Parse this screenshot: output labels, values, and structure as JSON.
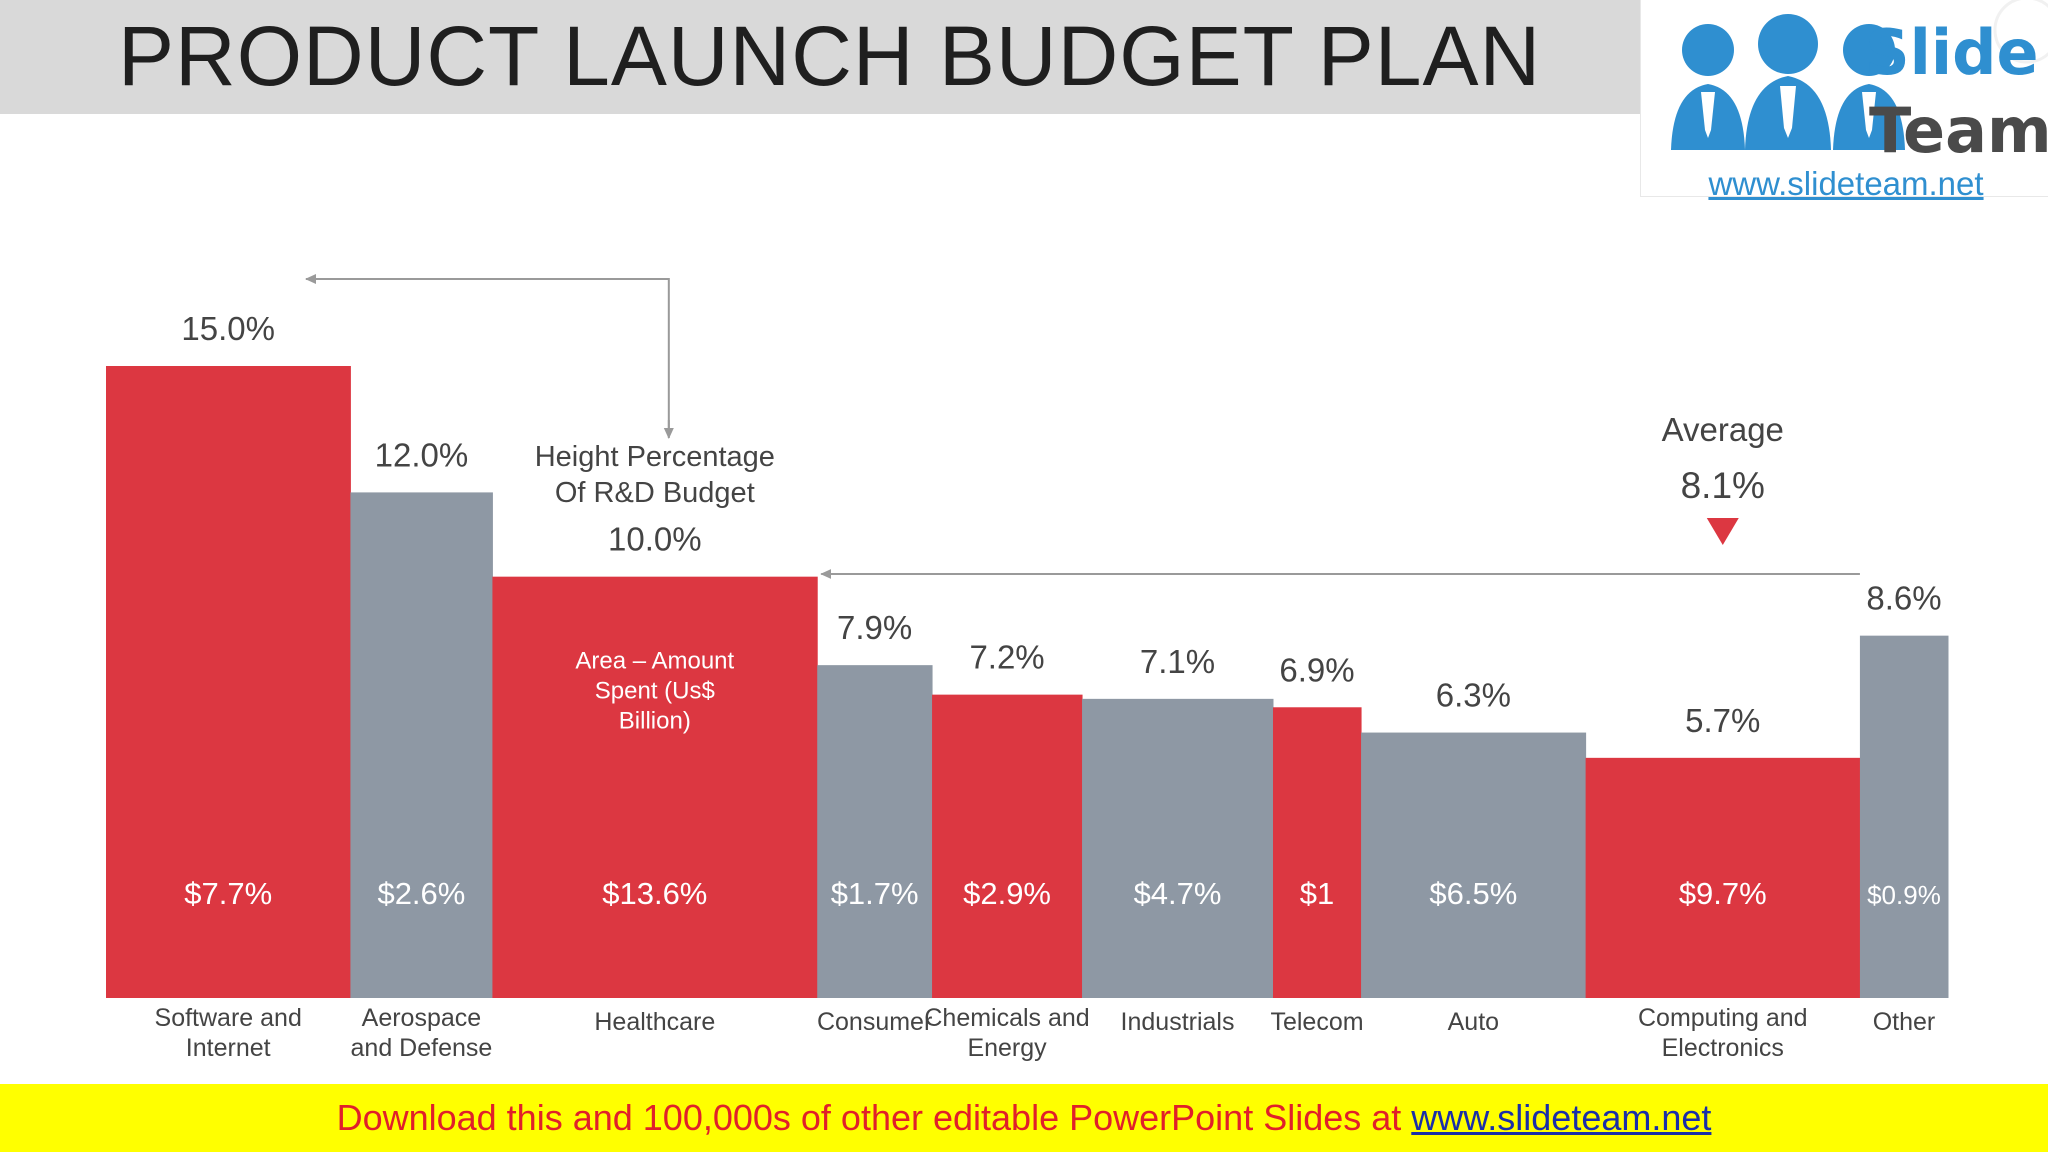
{
  "title": "PRODUCT LAUNCH BUDGET PLAN",
  "logo": {
    "word1": "Slide",
    "word2": "Team",
    "url": "www.slideteam.net"
  },
  "footer": {
    "text": "Download this and 100,000s of other editable PowerPoint Slides at ",
    "link": "www.slideteam.net"
  },
  "colors": {
    "red": "#dc3741",
    "gray": "#8e98a4",
    "annotation": "#9a9a9a",
    "label": "#444444"
  },
  "chart_data": {
    "type": "bar",
    "variant": "variable-width (marimekko-style) bars",
    "categories": [
      [
        "Software and",
        "Internet"
      ],
      [
        "Aerospace",
        "and Defense"
      ],
      [
        "Healthcare"
      ],
      [
        "Consumer"
      ],
      [
        "Chemicals and",
        "Energy"
      ],
      [
        "Industrials"
      ],
      [
        "Telecom"
      ],
      [
        "Auto"
      ],
      [
        "Computing and",
        "Electronics"
      ],
      [
        "Other"
      ]
    ],
    "height_values": [
      15.0,
      12.0,
      10.0,
      7.9,
      7.2,
      7.1,
      6.9,
      6.3,
      5.7,
      8.6
    ],
    "height_labels": [
      "15.0%",
      "12.0%",
      "10.0%",
      "7.9%",
      "7.2%",
      "7.1%",
      "6.9%",
      "6.3%",
      "5.7%",
      "8.6%"
    ],
    "width_values": [
      7.7,
      2.6,
      13.6,
      1.7,
      2.9,
      4.7,
      1.0,
      6.5,
      9.7,
      0.9
    ],
    "inner_labels": [
      "$7.7%",
      "$2.6%",
      "$13.6%",
      "$1.7%",
      "$2.9%",
      "$4.7%",
      "$1",
      "$6.5%",
      "$9.7%",
      "$0.9%"
    ],
    "bar_colors": [
      "red",
      "gray",
      "red",
      "gray",
      "red",
      "gray",
      "red",
      "gray",
      "red",
      "gray"
    ],
    "annotations": {
      "height_note": [
        "Height Percentage",
        "Of R&D Budget"
      ],
      "area_note": [
        "Area – Amount",
        "Spent (Us$",
        "Billion)"
      ],
      "average_label": "Average",
      "average_value": "8.1%"
    }
  }
}
